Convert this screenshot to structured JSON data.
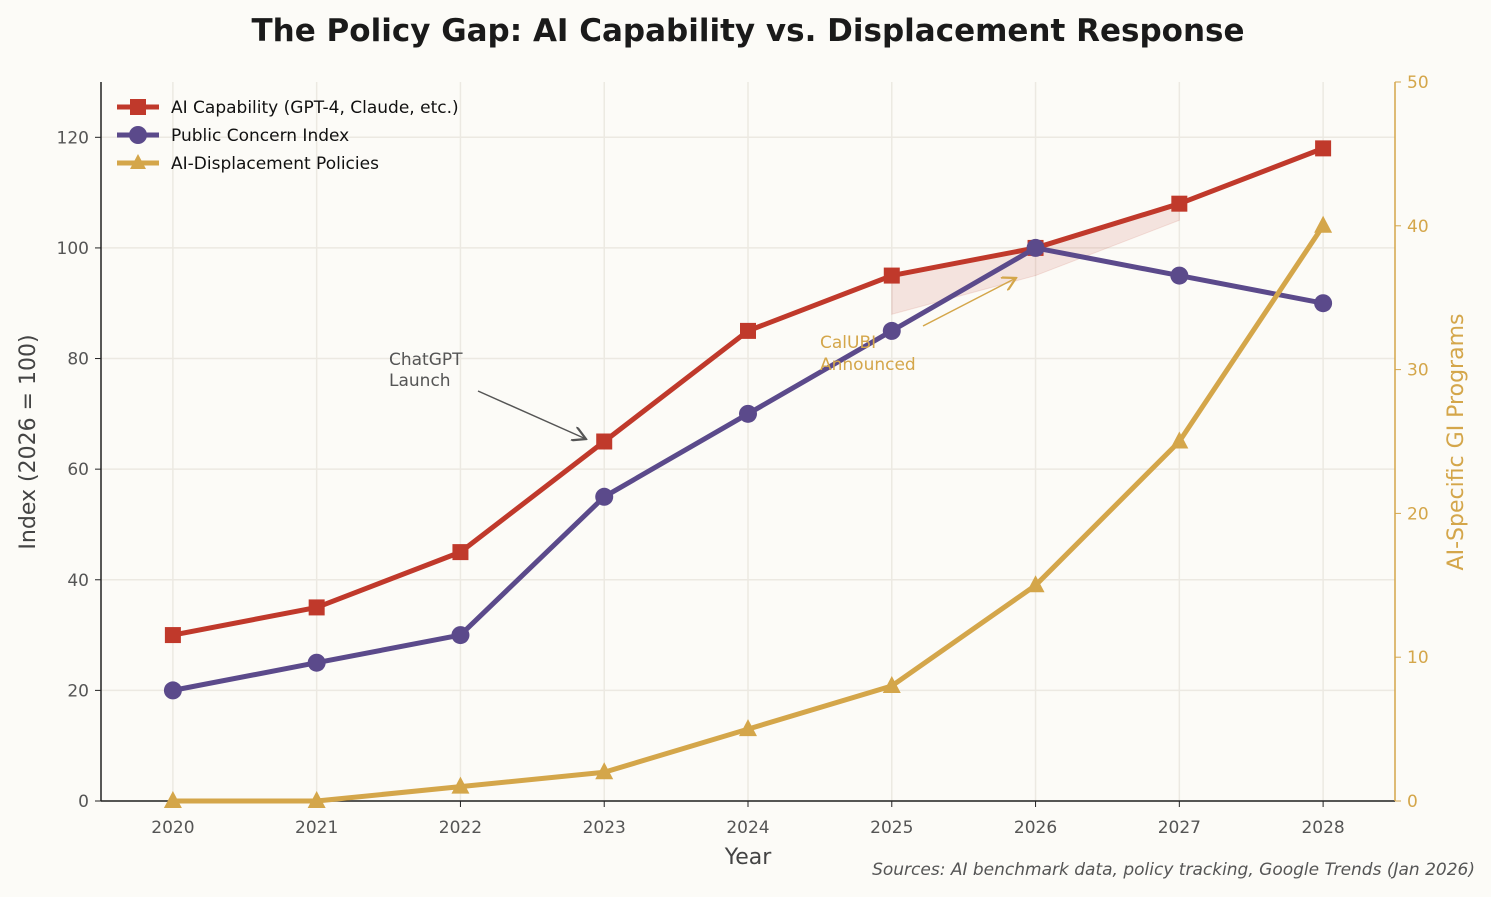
{
  "chart_data": {
    "type": "line",
    "title": "The Policy Gap: AI Capability vs. Displacement Response",
    "xlabel": "Year",
    "ylabel": "Index (2026 = 100)",
    "y2label": "AI-Specific GI Programs",
    "x": [
      2020,
      2021,
      2022,
      2023,
      2024,
      2025,
      2026,
      2027,
      2028
    ],
    "xlim": [
      2019.5,
      2028.5
    ],
    "ylim": [
      0,
      130
    ],
    "y2lim": [
      0,
      50
    ],
    "yticks": [
      0,
      20,
      40,
      60,
      80,
      100,
      120
    ],
    "y2ticks": [
      0,
      10,
      20,
      30,
      40,
      50
    ],
    "grid": true,
    "legend_position": "top-left",
    "series": [
      {
        "name": "AI Capability (GPT-4, Claude, etc.)",
        "axis": "left",
        "marker": "square",
        "color": "#c0392b",
        "values": [
          30,
          35,
          45,
          65,
          85,
          95,
          100,
          108,
          118
        ]
      },
      {
        "name": "Public Concern Index",
        "axis": "left",
        "marker": "circle",
        "color": "#5b4a8b",
        "values": [
          20,
          25,
          30,
          55,
          70,
          85,
          100,
          95,
          90
        ]
      },
      {
        "name": "AI-Displacement Policies",
        "axis": "right",
        "marker": "triangle",
        "color": "#d4a64a",
        "values": [
          0,
          0,
          1,
          2,
          5,
          8,
          15,
          25,
          40
        ]
      }
    ],
    "shaded_gap": {
      "x": [
        2025,
        2026,
        2027
      ],
      "upper": [
        95,
        100,
        108
      ],
      "lower": [
        88,
        95,
        105
      ],
      "color": "#c0392b"
    },
    "annotations": [
      {
        "text": "ChatGPT\nLaunch",
        "color": "#555555"
      },
      {
        "text": "CalUBI\nAnnounced",
        "color": "#d4a64a"
      }
    ],
    "footnote": "Sources: AI benchmark data, policy tracking, Google Trends (Jan 2026)"
  }
}
